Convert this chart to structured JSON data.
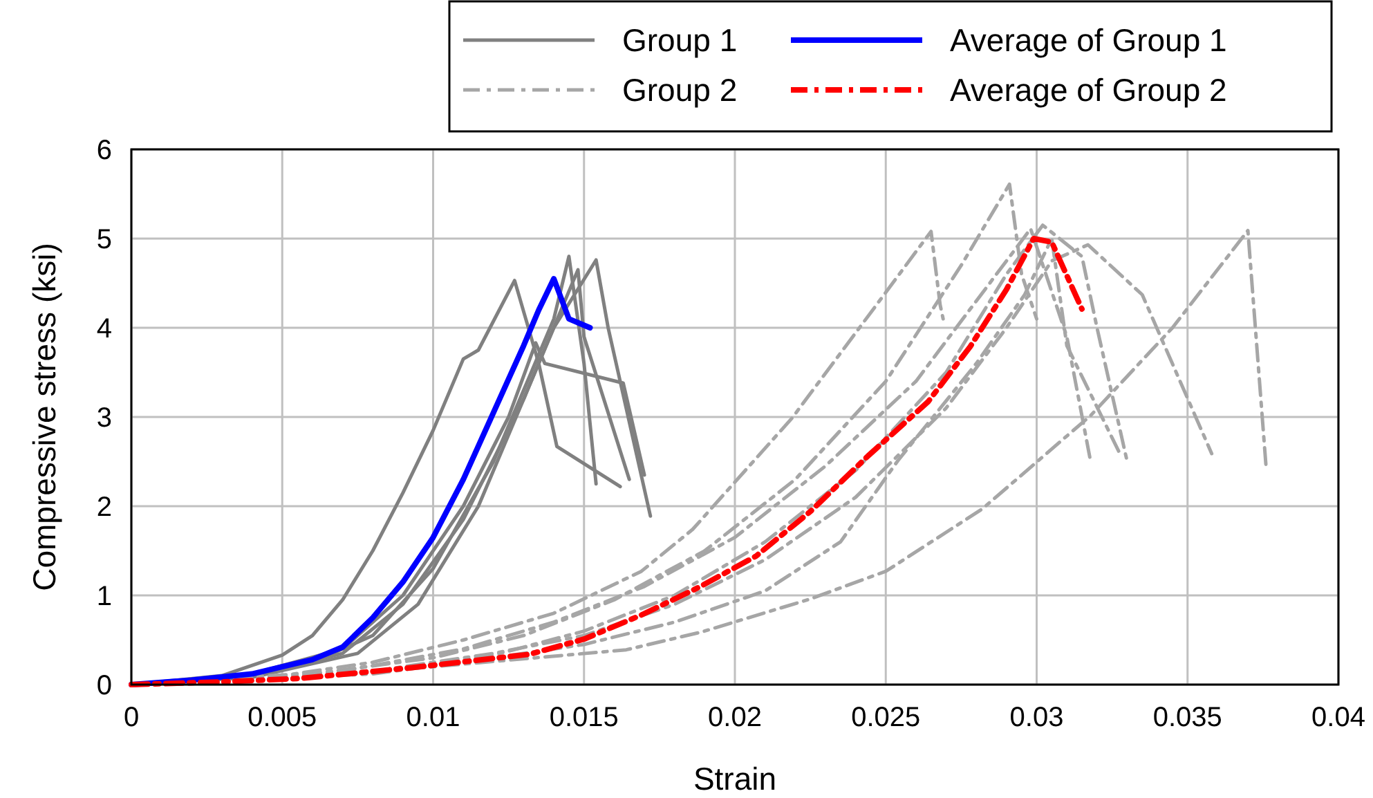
{
  "chart_data": {
    "type": "line",
    "xlabel": "Strain",
    "ylabel": "Compressive stress (ksi)",
    "xlim": [
      0,
      0.04
    ],
    "ylim": [
      0,
      6
    ],
    "xticks": [
      0,
      0.005,
      0.01,
      0.015,
      0.02,
      0.025,
      0.03,
      0.035,
      0.04
    ],
    "yticks": [
      0,
      1,
      2,
      3,
      4,
      5,
      6
    ],
    "grid": true,
    "legend": "top right",
    "series": [
      {
        "name": "Group 1",
        "color": "#808080",
        "line_style": "solid",
        "x": [
          0,
          0.003,
          0.005,
          0.006,
          0.007,
          0.008,
          0.009,
          0.01,
          0.011,
          0.0115,
          0.0127,
          0.0135,
          0.0141,
          0.0162
        ],
        "values": [
          0,
          0.1,
          0.33,
          0.55,
          0.95,
          1.5,
          2.15,
          2.85,
          3.65,
          3.75,
          4.53,
          3.6,
          2.67,
          2.22
        ]
      },
      {
        "color": "#808080",
        "line_style": "solid",
        "x": [
          0,
          0.004,
          0.006,
          0.008,
          0.01,
          0.012,
          0.013,
          0.014,
          0.0145,
          0.015,
          0.0154
        ],
        "values": [
          0,
          0.1,
          0.25,
          0.55,
          1.3,
          2.5,
          3.3,
          4.1,
          4.8,
          3.6,
          2.25
        ]
      },
      {
        "color": "#808080",
        "line_style": "solid",
        "x": [
          0,
          0.004,
          0.007,
          0.009,
          0.011,
          0.013,
          0.014,
          0.0154,
          0.0158,
          0.0172
        ],
        "values": [
          0,
          0.1,
          0.35,
          0.9,
          1.85,
          3.2,
          4,
          4.76,
          4,
          1.89
        ]
      },
      {
        "color": "#808080",
        "line_style": "solid",
        "x": [
          0,
          0.004,
          0.007,
          0.009,
          0.011,
          0.0125,
          0.0134,
          0.0137,
          0.0163,
          0.017
        ],
        "values": [
          0,
          0.12,
          0.4,
          1,
          2,
          3,
          3.83,
          3.6,
          3.38,
          2.35
        ]
      },
      {
        "color": "#808080",
        "line_style": "solid",
        "x": [
          0,
          0.004,
          0.0075,
          0.0095,
          0.0115,
          0.013,
          0.0148,
          0.015,
          0.0165
        ],
        "values": [
          0,
          0.08,
          0.35,
          0.9,
          2,
          3.2,
          4.65,
          3.9,
          2.3
        ]
      },
      {
        "name": "Group 2",
        "color": "#a6a6a6",
        "line_style": "dashed",
        "x": [
          0,
          0.006,
          0.01,
          0.013,
          0.016,
          0.019,
          0.022,
          0.025,
          0.0275,
          0.0291,
          0.0295,
          0.03
        ],
        "values": [
          0,
          0.12,
          0.3,
          0.55,
          0.95,
          1.5,
          2.3,
          3.4,
          4.7,
          5.61,
          4.6,
          4.1
        ]
      },
      {
        "color": "#a6a6a6",
        "line_style": "dashed",
        "x": [
          0,
          0.005,
          0.008,
          0.011,
          0.014,
          0.0169,
          0.0186,
          0.0219,
          0.0247,
          0.0265,
          0.0268,
          0.0269
        ],
        "values": [
          0,
          0.1,
          0.25,
          0.5,
          0.8,
          1.27,
          1.74,
          2.99,
          4.26,
          5.08,
          4.26,
          4.1
        ]
      },
      {
        "color": "#a6a6a6",
        "line_style": "dashed",
        "x": [
          0,
          0.005,
          0.01,
          0.0164,
          0.0189,
          0.0225,
          0.025,
          0.0282,
          0.0318,
          0.0345,
          0.037,
          0.0376
        ],
        "values": [
          0,
          0.06,
          0.2,
          0.39,
          0.59,
          0.96,
          1.27,
          1.97,
          3.02,
          4,
          5.09,
          2.45
        ]
      },
      {
        "color": "#a6a6a6",
        "line_style": "dashed",
        "x": [
          0,
          0.007,
          0.011,
          0.014,
          0.017,
          0.02,
          0.023,
          0.026,
          0.028,
          0.0298,
          0.031,
          0.0318
        ],
        "values": [
          0,
          0.15,
          0.4,
          0.7,
          1.1,
          1.65,
          2.45,
          3.4,
          4.3,
          5.11,
          3.9,
          2.48
        ]
      },
      {
        "color": "#a6a6a6",
        "line_style": "dashed",
        "x": [
          0,
          0.008,
          0.012,
          0.015,
          0.018,
          0.021,
          0.024,
          0.027,
          0.029,
          0.0305,
          0.0317,
          0.0335,
          0.0358
        ],
        "values": [
          0,
          0.15,
          0.35,
          0.55,
          0.9,
          1.4,
          2.1,
          3.1,
          4,
          4.75,
          4.93,
          4.37,
          2.59
        ]
      },
      {
        "color": "#a6a6a6",
        "line_style": "dashed",
        "x": [
          0,
          0.008,
          0.012,
          0.015,
          0.018,
          0.021,
          0.0235,
          0.0254,
          0.028,
          0.0296,
          0.0305,
          0.031,
          0.0328
        ],
        "values": [
          0,
          0.12,
          0.3,
          0.45,
          0.7,
          1.05,
          1.6,
          2.51,
          3.6,
          4.37,
          5,
          3.8,
          2.56
        ]
      },
      {
        "color": "#a6a6a6",
        "line_style": "dashed",
        "x": [
          0,
          0.008,
          0.012,
          0.015,
          0.018,
          0.021,
          0.024,
          0.027,
          0.029,
          0.0302,
          0.0315,
          0.032,
          0.033
        ],
        "values": [
          0,
          0.14,
          0.33,
          0.6,
          1,
          1.6,
          2.4,
          3.5,
          4.6,
          5.15,
          4.8,
          4,
          2.5
        ]
      },
      {
        "name": "Average of Group 1",
        "color": "#0000ff",
        "line_style": "solid",
        "x": [
          0,
          0.002,
          0.004,
          0.005,
          0.006,
          0.007,
          0.008,
          0.009,
          0.01,
          0.011,
          0.012,
          0.013,
          0.0135,
          0.014,
          0.0145,
          0.0152
        ],
        "values": [
          0,
          0.05,
          0.12,
          0.2,
          0.28,
          0.42,
          0.75,
          1.15,
          1.65,
          2.3,
          3.05,
          3.8,
          4.2,
          4.55,
          4.1,
          4
        ]
      },
      {
        "name": "Average of Group 2",
        "color": "#ff0000",
        "line_style": "dashed",
        "x": [
          0,
          0.003,
          0.0056,
          0.0093,
          0.0132,
          0.015,
          0.0169,
          0.0188,
          0.0207,
          0.0225,
          0.0244,
          0.0264,
          0.0278,
          0.029,
          0.0299,
          0.0305,
          0.0315
        ],
        "values": [
          0,
          0.03,
          0.07,
          0.19,
          0.34,
          0.51,
          0.78,
          1.09,
          1.44,
          1.94,
          2.56,
          3.17,
          3.79,
          4.43,
          5,
          4.96,
          4.21
        ]
      }
    ]
  }
}
